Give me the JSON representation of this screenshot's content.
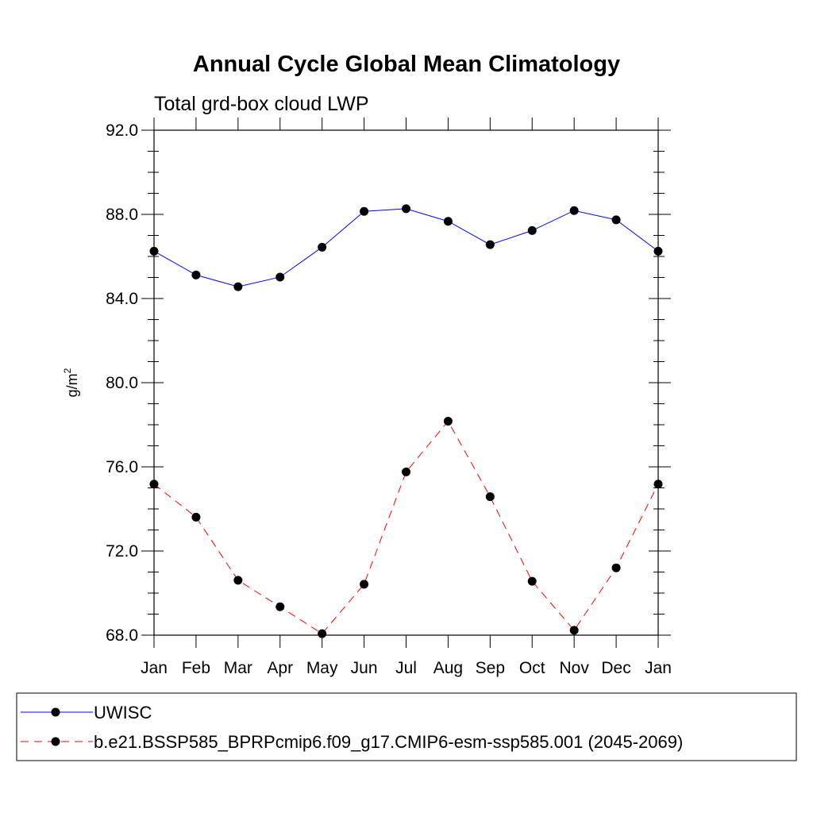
{
  "chart_data": {
    "type": "line",
    "title": "Annual Cycle Global Mean Climatology",
    "subtitle": "Total grd-box cloud LWP",
    "ylabel_base": "g/m",
    "ylabel_sup": "2",
    "ylim": [
      68.0,
      92.0
    ],
    "y_ticks": [
      "92.0",
      "88.0",
      "84.0",
      "80.0",
      "76.0",
      "72.0",
      "68.0"
    ],
    "categories": [
      "Jan",
      "Feb",
      "Mar",
      "Apr",
      "May",
      "Jun",
      "Jul",
      "Aug",
      "Sep",
      "Oct",
      "Nov",
      "Dec",
      "Jan"
    ],
    "grid": false,
    "legend_placement": "bottom",
    "series": [
      {
        "name": "UWISC",
        "color": "#0000ff",
        "dashed": false,
        "values": [
          86.25,
          85.12,
          84.56,
          85.02,
          86.44,
          88.14,
          88.27,
          87.67,
          86.56,
          87.23,
          88.18,
          87.74,
          86.25
        ]
      },
      {
        "name": "b.e21.BSSP585_BPRPcmip6.f09_g17.CMIP6-esm-ssp585.001 (2045-2069)",
        "color": "#ff0000",
        "dashed": true,
        "values": [
          75.18,
          73.61,
          70.61,
          69.35,
          68.07,
          70.42,
          75.76,
          78.17,
          74.58,
          70.56,
          68.23,
          71.2,
          75.18
        ]
      }
    ]
  }
}
